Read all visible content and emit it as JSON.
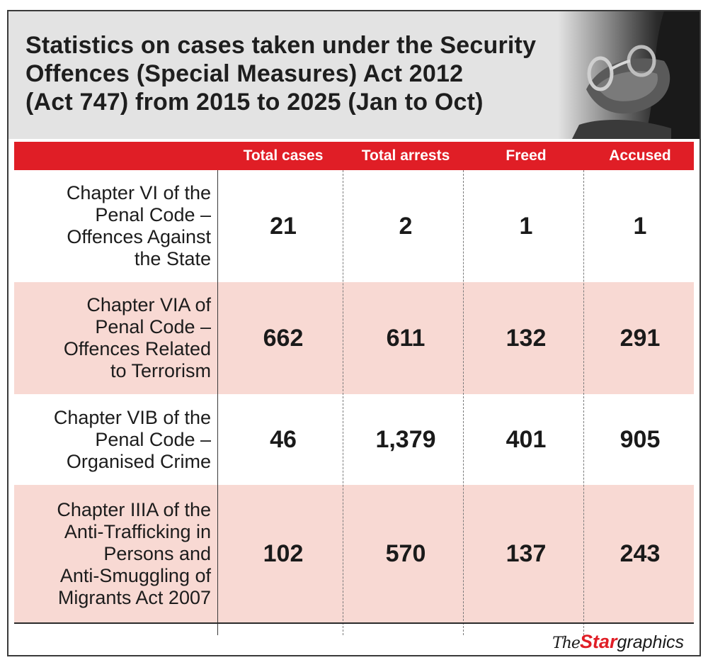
{
  "title_lines": [
    "Statistics on cases taken under the Security",
    "Offences (Special Measures) Act 2012",
    "(Act 747) from 2015 to 2025 (Jan to Oct)"
  ],
  "credit": {
    "the": "The",
    "star": "Star",
    "graphics": "graphics"
  },
  "colors": {
    "header_bar": "#e01e26",
    "row_shade": "#f8d9d3",
    "banner_bg": "#e3e3e3"
  },
  "photo_icon": "handcuffed-hands-photo",
  "chart_data": {
    "type": "table",
    "columns": [
      "Total cases",
      "Total arrests",
      "Freed",
      "Accused"
    ],
    "rows": [
      {
        "label_lines": [
          "Chapter VI of the",
          "Penal Code –",
          "Offences Against",
          "the State"
        ],
        "values": [
          "21",
          "2",
          "1",
          "1"
        ]
      },
      {
        "label_lines": [
          "Chapter VIA of",
          "Penal Code –",
          "Offences Related",
          "to Terrorism"
        ],
        "values": [
          "662",
          "611",
          "132",
          "291"
        ]
      },
      {
        "label_lines": [
          "Chapter VIB of the",
          "Penal Code –",
          "Organised Crime"
        ],
        "values": [
          "46",
          "1,379",
          "401",
          "905"
        ]
      },
      {
        "label_lines": [
          "Chapter IIIA of the",
          "Anti-Trafficking in",
          "Persons and",
          "Anti-Smuggling of",
          "Migrants Act 2007"
        ],
        "values": [
          "102",
          "570",
          "137",
          "243"
        ]
      }
    ]
  }
}
